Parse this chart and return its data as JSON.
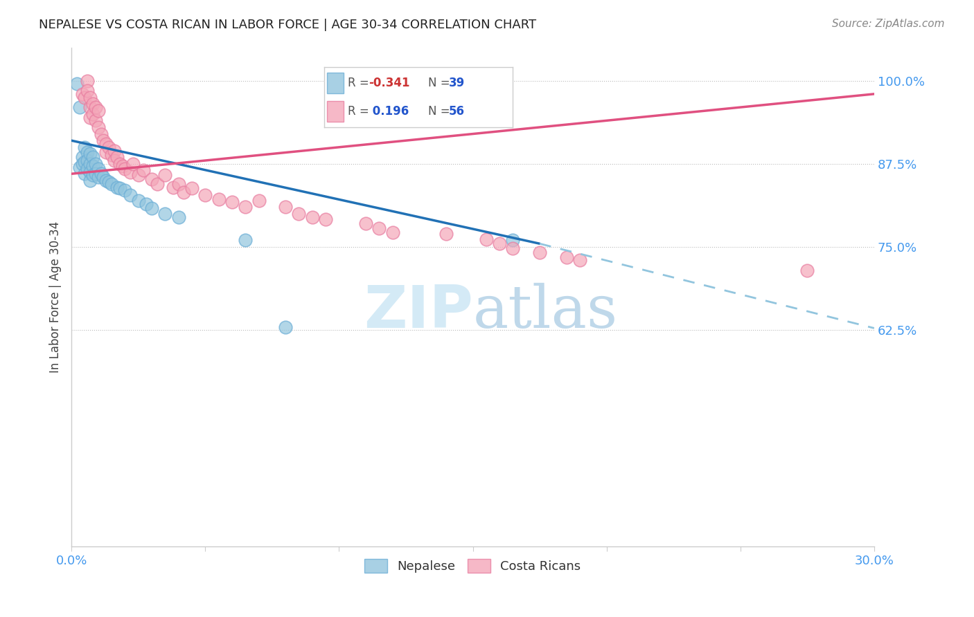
{
  "title": "NEPALESE VS COSTA RICAN IN LABOR FORCE | AGE 30-34 CORRELATION CHART",
  "source": "Source: ZipAtlas.com",
  "ylabel": "In Labor Force | Age 30-34",
  "xlim": [
    0.0,
    0.3
  ],
  "ylim": [
    0.3,
    1.05
  ],
  "legend_label1": "Nepalese",
  "legend_label2": "Costa Ricans",
  "nepalese_color": "#92c5de",
  "nepalese_edge_color": "#6baed6",
  "costa_rican_color": "#f4a7b9",
  "costa_rican_edge_color": "#e87da0",
  "nepalese_line_color": "#2171b5",
  "nepalese_line_dash_color": "#92c5de",
  "costa_rican_line_color": "#e05080",
  "watermark_color": "#d0e8f5",
  "nepalese_x": [
    0.002,
    0.003,
    0.003,
    0.004,
    0.004,
    0.005,
    0.005,
    0.005,
    0.006,
    0.006,
    0.006,
    0.007,
    0.007,
    0.007,
    0.007,
    0.008,
    0.008,
    0.008,
    0.009,
    0.009,
    0.01,
    0.01,
    0.011,
    0.012,
    0.013,
    0.014,
    0.015,
    0.017,
    0.018,
    0.02,
    0.022,
    0.025,
    0.028,
    0.03,
    0.035,
    0.04,
    0.065,
    0.08,
    0.165
  ],
  "nepalese_y": [
    0.995,
    0.96,
    0.87,
    0.885,
    0.875,
    0.9,
    0.878,
    0.86,
    0.892,
    0.88,
    0.868,
    0.89,
    0.875,
    0.862,
    0.85,
    0.885,
    0.872,
    0.858,
    0.875,
    0.86,
    0.868,
    0.855,
    0.86,
    0.855,
    0.85,
    0.848,
    0.845,
    0.84,
    0.838,
    0.835,
    0.828,
    0.82,
    0.815,
    0.808,
    0.8,
    0.795,
    0.76,
    0.63,
    0.76
  ],
  "costa_rican_x": [
    0.004,
    0.005,
    0.006,
    0.006,
    0.007,
    0.007,
    0.007,
    0.008,
    0.008,
    0.009,
    0.009,
    0.01,
    0.01,
    0.011,
    0.012,
    0.013,
    0.013,
    0.014,
    0.015,
    0.016,
    0.016,
    0.017,
    0.018,
    0.019,
    0.02,
    0.022,
    0.023,
    0.025,
    0.027,
    0.03,
    0.032,
    0.035,
    0.038,
    0.04,
    0.042,
    0.045,
    0.05,
    0.055,
    0.06,
    0.065,
    0.07,
    0.08,
    0.085,
    0.09,
    0.095,
    0.11,
    0.115,
    0.12,
    0.14,
    0.155,
    0.16,
    0.165,
    0.175,
    0.185,
    0.19,
    0.275
  ],
  "costa_rican_y": [
    0.98,
    0.975,
    1.0,
    0.985,
    0.96,
    0.975,
    0.945,
    0.965,
    0.95,
    0.96,
    0.94,
    0.955,
    0.93,
    0.92,
    0.91,
    0.905,
    0.892,
    0.9,
    0.888,
    0.895,
    0.88,
    0.885,
    0.875,
    0.872,
    0.868,
    0.862,
    0.875,
    0.858,
    0.865,
    0.852,
    0.845,
    0.858,
    0.84,
    0.845,
    0.832,
    0.838,
    0.828,
    0.822,
    0.818,
    0.81,
    0.82,
    0.81,
    0.8,
    0.795,
    0.792,
    0.785,
    0.778,
    0.772,
    0.77,
    0.762,
    0.755,
    0.748,
    0.742,
    0.735,
    0.73,
    0.715
  ],
  "nep_line_x0": 0.0,
  "nep_line_x1": 0.175,
  "nep_line_x2": 0.3,
  "nep_line_y0": 0.91,
  "nep_line_y1": 0.755,
  "nep_line_y2": 0.628,
  "cr_line_x0": 0.0,
  "cr_line_x1": 0.3,
  "cr_line_y0": 0.86,
  "cr_line_y1": 0.98
}
